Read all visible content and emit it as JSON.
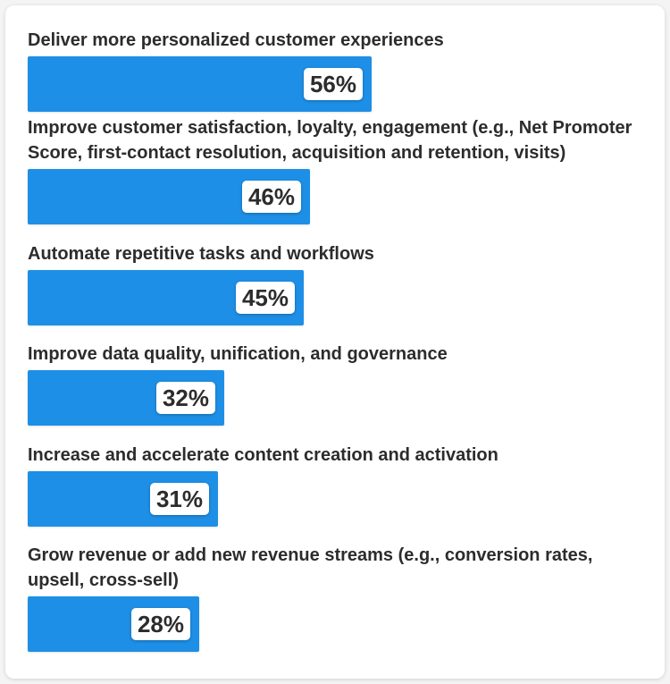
{
  "chart_data": {
    "type": "bar",
    "orientation": "horizontal",
    "title": "",
    "xlabel": "",
    "ylabel": "",
    "xlim": [
      0,
      100
    ],
    "categories": [
      "Deliver more personalized customer experiences",
      "Improve customer satisfaction, loyalty, engagement (e.g., Net Promoter Score, first-contact resolution, acquisition and retention, visits)",
      "Automate repetitive tasks and workflows",
      "Improve data quality, unification, and governance",
      "Increase and accelerate content creation and activation",
      "Grow revenue or add new revenue streams (e.g., conversion rates, upsell, cross-sell)"
    ],
    "values": [
      56,
      46,
      45,
      32,
      31,
      28
    ],
    "value_labels": [
      "56%",
      "46%",
      "45%",
      "32%",
      "31%",
      "28%"
    ],
    "bar_color": "#1e8fe6",
    "label_color": "#2c2c2c",
    "background_color": "#ffffff"
  }
}
